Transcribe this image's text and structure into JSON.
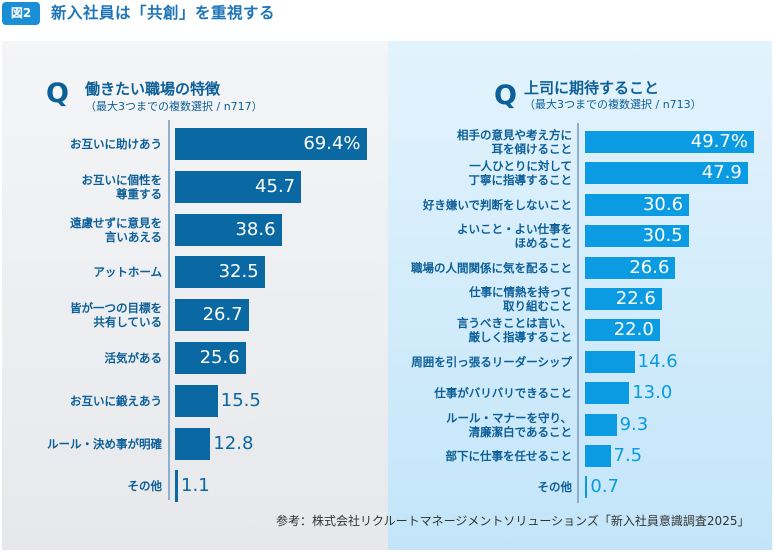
{
  "header": {
    "badge": "図2",
    "title": "新入社員は「共創」を重視する"
  },
  "colors": {
    "left_bar": "#0a68a3",
    "right_bar": "#0a9be3",
    "label_text": "#0d5f98"
  },
  "chart_data": [
    {
      "type": "bar",
      "orientation": "horizontal",
      "q_mark": "Q",
      "title": "働きたい職場の特徴",
      "subtitle": "（最大3つまでの複数選択 / n717）",
      "categories": [
        "お互いに助けあう",
        "お互いに個性を\n尊重する",
        "遠慮せずに意見を\n言いあえる",
        "アットホーム",
        "皆が一つの目標を\n共有している",
        "活気がある",
        "お互いに鍛えあう",
        "ルール・決め事が明確",
        "その他"
      ],
      "values": [
        69.4,
        45.7,
        38.6,
        32.5,
        26.7,
        25.6,
        15.5,
        12.8,
        1.1
      ],
      "value_labels": [
        "69.4%",
        "45.7",
        "38.6",
        "32.5",
        "26.7",
        "25.6",
        "15.5",
        "12.8",
        "1.1"
      ],
      "unit": "%",
      "xlim": [
        0,
        70
      ]
    },
    {
      "type": "bar",
      "orientation": "horizontal",
      "q_mark": "Q",
      "title": "上司に期待すること",
      "subtitle": "（最大3つまでの複数選択 / n713）",
      "categories": [
        "相手の意見や考え方に\n耳を傾けること",
        "一人ひとりに対して\n丁寧に指導すること",
        "好き嫌いで判断をしないこと",
        "よいこと・よい仕事を\nほめること",
        "職場の人間関係に気を配ること",
        "仕事に情熱を持って\n取り組むこと",
        "言うべきことは言い、\n厳しく指導すること",
        "周囲を引っ張るリーダーシップ",
        "仕事がバリバリできること",
        "ルール・マナーを守り、\n清廉潔白であること",
        "部下に仕事を任せること",
        "その他"
      ],
      "values": [
        49.7,
        47.9,
        30.6,
        30.5,
        26.6,
        22.6,
        22.0,
        14.6,
        13.0,
        9.3,
        7.5,
        0.7
      ],
      "value_labels": [
        "49.7%",
        "47.9",
        "30.6",
        "30.5",
        "26.6",
        "22.6",
        "22.0",
        "14.6",
        "13.0",
        "9.3",
        "7.5",
        "0.7"
      ],
      "unit": "%",
      "xlim": [
        0,
        50
      ]
    }
  ],
  "source": "参考：株式会社リクルートマネージメントソリューションズ「新入社員意識調査2025」"
}
